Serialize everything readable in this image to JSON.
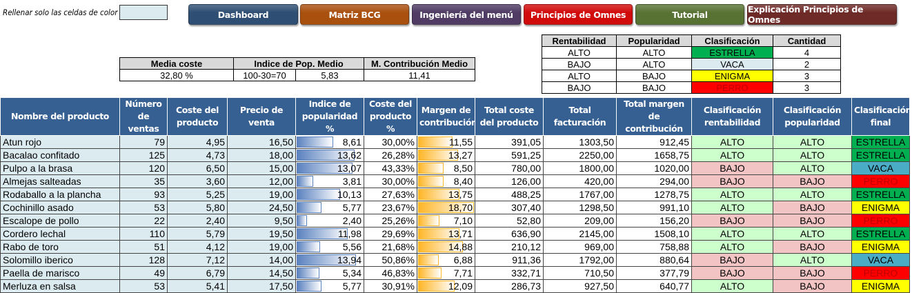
{
  "hint": "Rellenar solo las celdas de color",
  "nav": [
    {
      "label": "Dashboard",
      "color": "#2e4e73"
    },
    {
      "label": "Matriz BCG",
      "color": "#a9500f"
    },
    {
      "label": "Ingeniería del menú",
      "color": "#4f3b63"
    },
    {
      "label": "Principios de Omnes",
      "color": "#d10a0a"
    },
    {
      "label": "Tutorial",
      "color": "#587233"
    },
    {
      "label": "Explicación Principios de Omnes",
      "color": "#6e2a26"
    }
  ],
  "summary": {
    "headers": [
      "Media coste",
      "Indice de Pop. Medio",
      "M. Contribución Medio"
    ],
    "media_coste": "32,80 %",
    "pop_formula": "100-30=70",
    "pop_medio": "5,83",
    "contrib_medio": "11,41"
  },
  "classification": {
    "headers": [
      "Rentabilidad",
      "Popularidad",
      "Clasificación",
      "Cantidad"
    ],
    "rows": [
      [
        "ALTO",
        "ALTO",
        "ESTRELLA",
        "4"
      ],
      [
        "BAJO",
        "ALTO",
        "VACA",
        "2"
      ],
      [
        "ALTO",
        "BAJO",
        "ENIGMA",
        "3"
      ],
      [
        "BAJO",
        "BAJO",
        "PERRO",
        "3"
      ]
    ]
  },
  "colors": {
    "ESTRELLA": "#00b050",
    "VACA": "#4bacc6",
    "ENIGMA": "#ffff00",
    "PERRO": "#ff0000",
    "VACA_legend": "#dcebf0",
    "ALTO": "#ccffcc",
    "BAJO": "#f2c4c4",
    "PERRO_text": "#c00000"
  },
  "table": {
    "headers": [
      "Nombre del producto",
      "Número de ventas",
      "Coste del producto",
      "Precio de venta",
      "Indice de popularidad %",
      "Coste del producto %",
      "Margen de contribución",
      "Total coste del producto",
      "Total facturación",
      "Total margen de contribución",
      "Clasificación rentabilidad",
      "Clasificación popularidad",
      "Clasificación final"
    ],
    "rows": [
      [
        "Atun rojo",
        "79",
        "4,95",
        "16,50",
        "8,61",
        "30,00%",
        "11,55",
        "391,05",
        "1303,50",
        "912,45",
        "ALTO",
        "ALTO",
        "ESTRELLA"
      ],
      [
        "Bacalao confitado",
        "125",
        "4,73",
        "18,00",
        "13,62",
        "26,28%",
        "13,27",
        "591,25",
        "2250,00",
        "1658,75",
        "ALTO",
        "ALTO",
        "ESTRELLA"
      ],
      [
        "Pulpo a la brasa",
        "120",
        "6,50",
        "15,00",
        "13,07",
        "43,33%",
        "8,50",
        "780,00",
        "1800,00",
        "1020,00",
        "BAJO",
        "ALTO",
        "VACA"
      ],
      [
        "Almejas salteadas",
        "35",
        "3,60",
        "12,00",
        "3,81",
        "30,00%",
        "8,40",
        "126,00",
        "420,00",
        "294,00",
        "BAJO",
        "BAJO",
        "PERRO"
      ],
      [
        "Rodaballo a la plancha",
        "93",
        "5,25",
        "19,00",
        "10,13",
        "27,63%",
        "13,75",
        "488,25",
        "1767,00",
        "1278,75",
        "ALTO",
        "ALTO",
        "ESTRELLA"
      ],
      [
        "Cochinillo asado",
        "53",
        "5,80",
        "24,50",
        "5,77",
        "23,67%",
        "18,70",
        "307,40",
        "1298,50",
        "991,10",
        "ALTO",
        "BAJO",
        "ENIGMA"
      ],
      [
        "Escalope de pollo",
        "22",
        "2,40",
        "9,50",
        "2,40",
        "25,26%",
        "7,10",
        "52,80",
        "209,00",
        "156,20",
        "BAJO",
        "BAJO",
        "PERRO"
      ],
      [
        "Cordero lechal",
        "110",
        "5,79",
        "19,50",
        "11,98",
        "29,69%",
        "13,71",
        "636,90",
        "2145,00",
        "1508,10",
        "ALTO",
        "ALTO",
        "ESTRELLA"
      ],
      [
        "Rabo de toro",
        "51",
        "4,12",
        "19,00",
        "5,56",
        "21,68%",
        "14,88",
        "210,12",
        "969,00",
        "758,88",
        "ALTO",
        "BAJO",
        "ENIGMA"
      ],
      [
        "Solomillo iberico",
        "128",
        "7,12",
        "14,00",
        "13,94",
        "50,86%",
        "6,88",
        "911,36",
        "1792,00",
        "880,64",
        "BAJO",
        "ALTO",
        "VACA"
      ],
      [
        "Paella de marisco",
        "49",
        "6,79",
        "14,50",
        "5,34",
        "46,83%",
        "7,71",
        "332,71",
        "710,50",
        "377,79",
        "BAJO",
        "BAJO",
        "PERRO"
      ],
      [
        "Merluza en salsa",
        "53",
        "5,41",
        "17,50",
        "5,77",
        "30,91%",
        "12,09",
        "286,73",
        "927,50",
        "640,77",
        "ALTO",
        "BAJO",
        "ENIGMA"
      ]
    ]
  }
}
